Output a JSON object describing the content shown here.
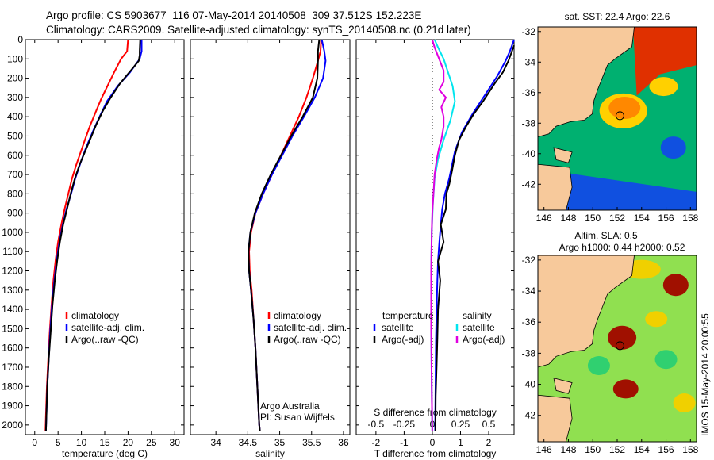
{
  "header": {
    "line1": "Argo profile: CS 5903677_116 07-May-2014 20140508_309 37.512S 152.223E",
    "line2": "Climatology: CARS2009. Satellite-adjusted climatology: synTS_20140508.nc (0.21d later)"
  },
  "chart_data": [
    {
      "type": "line",
      "id": "temperature",
      "xlabel": "temperature (deg C)",
      "xlim": [
        -2,
        32
      ],
      "ylim": [
        2050,
        0
      ],
      "y_reversed": true,
      "xticks": [
        0,
        5,
        10,
        15,
        20,
        25,
        30
      ],
      "yticks": [
        0,
        100,
        200,
        300,
        400,
        500,
        600,
        700,
        800,
        900,
        1000,
        1100,
        1200,
        1300,
        1400,
        1500,
        1600,
        1700,
        1800,
        1900,
        2000
      ],
      "legend": [
        "climatology",
        "satellite-adj. clim.",
        "Argo(..raw -QC)"
      ],
      "series": [
        {
          "name": "climatology",
          "color": "#ff0000",
          "points": [
            [
              20.0,
              0
            ],
            [
              19.8,
              60
            ],
            [
              18.5,
              100
            ],
            [
              17.0,
              170
            ],
            [
              15.6,
              240
            ],
            [
              14.2,
              310
            ],
            [
              13.0,
              380
            ],
            [
              11.8,
              450
            ],
            [
              10.9,
              510
            ],
            [
              9.9,
              580
            ],
            [
              8.9,
              650
            ],
            [
              8.0,
              720
            ],
            [
              7.2,
              800
            ],
            [
              6.4,
              880
            ],
            [
              5.7,
              960
            ],
            [
              5.0,
              1050
            ],
            [
              4.5,
              1140
            ],
            [
              4.0,
              1250
            ],
            [
              3.6,
              1380
            ],
            [
              3.2,
              1520
            ],
            [
              2.9,
              1660
            ],
            [
              2.6,
              1800
            ],
            [
              2.4,
              1950
            ],
            [
              2.3,
              2030
            ]
          ]
        },
        {
          "name": "satellite-adj. clim.",
          "color": "#0000ff",
          "points": [
            [
              22.9,
              0
            ],
            [
              22.9,
              60
            ],
            [
              22.5,
              100
            ],
            [
              20.4,
              170
            ],
            [
              17.8,
              240
            ],
            [
              15.5,
              320
            ],
            [
              13.9,
              400
            ],
            [
              12.4,
              480
            ],
            [
              11.0,
              560
            ],
            [
              9.8,
              640
            ],
            [
              8.7,
              720
            ],
            [
              7.8,
              800
            ],
            [
              6.8,
              880
            ],
            [
              6.0,
              960
            ],
            [
              5.3,
              1050
            ],
            [
              4.7,
              1150
            ],
            [
              4.2,
              1250
            ],
            [
              3.7,
              1380
            ],
            [
              3.3,
              1520
            ],
            [
              3.0,
              1660
            ],
            [
              2.7,
              1800
            ],
            [
              2.5,
              1950
            ],
            [
              2.4,
              2030
            ]
          ]
        },
        {
          "name": "Argo(..raw -QC)",
          "color": "#000000",
          "points": [
            [
              22.6,
              0
            ],
            [
              22.5,
              60
            ],
            [
              22.5,
              80
            ],
            [
              22.3,
              110
            ],
            [
              20.6,
              160
            ],
            [
              18.2,
              230
            ],
            [
              16.3,
              300
            ],
            [
              14.6,
              370
            ],
            [
              13.2,
              440
            ],
            [
              12.0,
              510
            ],
            [
              10.8,
              580
            ],
            [
              9.6,
              650
            ],
            [
              8.6,
              720
            ],
            [
              7.7,
              800
            ],
            [
              6.9,
              880
            ],
            [
              6.1,
              960
            ],
            [
              5.4,
              1050
            ],
            [
              4.8,
              1150
            ],
            [
              4.3,
              1250
            ],
            [
              3.8,
              1380
            ],
            [
              3.4,
              1520
            ],
            [
              3.0,
              1660
            ],
            [
              2.7,
              1800
            ],
            [
              2.5,
              1950
            ],
            [
              2.4,
              2030
            ]
          ]
        }
      ]
    },
    {
      "type": "line",
      "id": "salinity",
      "xlabel": "salinity",
      "xlim": [
        33.6,
        36.1
      ],
      "ylim": [
        2050,
        0
      ],
      "y_reversed": true,
      "xticks": [
        34,
        34.5,
        35,
        35.5,
        36
      ],
      "legend": [
        "climatology",
        "satellite-adj. clim.",
        "Argo(..raw -QC)"
      ],
      "annotation_lines": [
        "Argo Australia",
        "PI: Susan Wijffels"
      ],
      "series": [
        {
          "name": "climatology",
          "color": "#ff0000",
          "points": [
            [
              35.65,
              0
            ],
            [
              35.64,
              60
            ],
            [
              35.6,
              110
            ],
            [
              35.52,
              200
            ],
            [
              35.42,
              300
            ],
            [
              35.3,
              400
            ],
            [
              35.16,
              500
            ],
            [
              35.02,
              600
            ],
            [
              34.88,
              700
            ],
            [
              34.74,
              800
            ],
            [
              34.62,
              900
            ],
            [
              34.55,
              1000
            ],
            [
              34.52,
              1100
            ],
            [
              34.53,
              1200
            ],
            [
              34.56,
              1300
            ],
            [
              34.59,
              1450
            ],
            [
              34.62,
              1600
            ],
            [
              34.65,
              1800
            ],
            [
              34.68,
              2000
            ],
            [
              34.69,
              2030
            ]
          ]
        },
        {
          "name": "satellite-adj. clim.",
          "color": "#0000ff",
          "points": [
            [
              35.66,
              0
            ],
            [
              35.7,
              60
            ],
            [
              35.72,
              110
            ],
            [
              35.68,
              200
            ],
            [
              35.55,
              300
            ],
            [
              35.38,
              400
            ],
            [
              35.2,
              500
            ],
            [
              35.04,
              600
            ],
            [
              34.88,
              700
            ],
            [
              34.74,
              800
            ],
            [
              34.62,
              900
            ],
            [
              34.54,
              1000
            ],
            [
              34.51,
              1100
            ],
            [
              34.52,
              1200
            ],
            [
              34.55,
              1300
            ],
            [
              34.59,
              1450
            ],
            [
              34.62,
              1600
            ],
            [
              34.65,
              1800
            ],
            [
              34.68,
              2000
            ],
            [
              34.69,
              2030
            ]
          ]
        },
        {
          "name": "Argo(..raw -QC)",
          "color": "#000000",
          "points": [
            [
              35.62,
              0
            ],
            [
              35.6,
              60
            ],
            [
              35.6,
              110
            ],
            [
              35.59,
              200
            ],
            [
              35.52,
              300
            ],
            [
              35.36,
              400
            ],
            [
              35.18,
              500
            ],
            [
              35.02,
              600
            ],
            [
              34.86,
              700
            ],
            [
              34.72,
              800
            ],
            [
              34.61,
              900
            ],
            [
              34.54,
              1000
            ],
            [
              34.51,
              1100
            ],
            [
              34.52,
              1200
            ],
            [
              34.55,
              1300
            ],
            [
              34.59,
              1450
            ],
            [
              34.62,
              1600
            ],
            [
              34.65,
              1800
            ],
            [
              34.68,
              2000
            ],
            [
              34.69,
              2030
            ]
          ]
        }
      ]
    },
    {
      "type": "line",
      "id": "difference",
      "xlabel": "T difference from climatology",
      "xlabel_top": "S difference from climatology",
      "xlim": [
        -2.7,
        2.9
      ],
      "xticks": [
        -2,
        -1,
        0,
        1,
        2
      ],
      "s_xticks": [
        -0.5,
        -0.25,
        0,
        0.25,
        0.5
      ],
      "s_scale": 4,
      "ylim": [
        2050,
        0
      ],
      "y_reversed": true,
      "legend_headers": [
        "temperature",
        "salinity"
      ],
      "legend_temperature": [
        "satellite",
        "Argo(-adj)"
      ],
      "legend_salinity": [
        "satellite",
        "Argo(-adj)"
      ],
      "series": [
        {
          "name": "satellite",
          "group": "temperature",
          "color": "#0000ff",
          "points": [
            [
              2.9,
              0
            ],
            [
              2.75,
              60
            ],
            [
              2.6,
              110
            ],
            [
              2.3,
              190
            ],
            [
              1.9,
              280
            ],
            [
              1.45,
              380
            ],
            [
              1.05,
              480
            ],
            [
              0.8,
              580
            ],
            [
              0.7,
              650
            ],
            [
              0.6,
              720
            ],
            [
              0.45,
              800
            ],
            [
              0.35,
              880
            ],
            [
              0.3,
              960
            ],
            [
              0.25,
              1050
            ],
            [
              0.2,
              1150
            ],
            [
              0.18,
              1250
            ],
            [
              0.15,
              1400
            ],
            [
              0.13,
              1550
            ],
            [
              0.12,
              1700
            ],
            [
              0.11,
              1850
            ],
            [
              0.1,
              2030
            ]
          ]
        },
        {
          "name": "Argo(-adj)",
          "group": "temperature",
          "color": "#000000",
          "points": [
            [
              2.9,
              30
            ],
            [
              2.7,
              110
            ],
            [
              2.5,
              170
            ],
            [
              2.2,
              230
            ],
            [
              1.8,
              320
            ],
            [
              1.45,
              390
            ],
            [
              1.2,
              450
            ],
            [
              0.95,
              520
            ],
            [
              0.8,
              600
            ],
            [
              0.7,
              680
            ],
            [
              0.6,
              750
            ],
            [
              0.5,
              800
            ],
            [
              0.48,
              880
            ],
            [
              0.3,
              960
            ],
            [
              0.4,
              1050
            ],
            [
              0.2,
              1150
            ],
            [
              0.28,
              1250
            ],
            [
              0.2,
              1400
            ],
            [
              0.18,
              1550
            ],
            [
              0.15,
              1700
            ],
            [
              0.12,
              1850
            ],
            [
              0.11,
              2030
            ]
          ]
        },
        {
          "name": "satellite",
          "group": "salinity",
          "color": "#00e5ee",
          "points": [
            [
              0.02,
              0
            ],
            [
              0.05,
              40
            ],
            [
              0.1,
              100
            ],
            [
              0.14,
              170
            ],
            [
              0.18,
              240
            ],
            [
              0.2,
              320
            ],
            [
              0.16,
              420
            ],
            [
              0.1,
              520
            ],
            [
              0.05,
              620
            ],
            [
              0.02,
              720
            ],
            [
              0.005,
              850
            ],
            [
              -0.005,
              1000
            ],
            [
              -0.01,
              1200
            ],
            [
              -0.01,
              1500
            ],
            [
              -0.005,
              1800
            ],
            [
              0.0,
              2030
            ]
          ]
        },
        {
          "name": "Argo(-adj)",
          "group": "salinity",
          "color": "#e000e0",
          "points": [
            [
              0.0,
              0
            ],
            [
              0.02,
              40
            ],
            [
              0.06,
              100
            ],
            [
              0.1,
              160
            ],
            [
              0.1,
              220
            ],
            [
              0.06,
              260
            ],
            [
              0.12,
              300
            ],
            [
              0.08,
              350
            ],
            [
              0.1,
              400
            ],
            [
              0.1,
              450
            ],
            [
              0.08,
              520
            ],
            [
              0.06,
              560
            ],
            [
              0.04,
              620
            ],
            [
              0.02,
              700
            ],
            [
              0.01,
              800
            ],
            [
              0.0,
              900
            ],
            [
              -0.005,
              1000
            ],
            [
              -0.01,
              1200
            ],
            [
              -0.01,
              1500
            ],
            [
              -0.005,
              1800
            ],
            [
              0.0,
              2030
            ]
          ]
        }
      ]
    },
    {
      "type": "heatmap",
      "id": "sst-map",
      "title": "sat. SST: 22.4  Argo: 22.6",
      "xlim": [
        145.5,
        158.5
      ],
      "ylim": [
        -43.7,
        -31.7
      ],
      "xticks": [
        146,
        148,
        150,
        152,
        154,
        156,
        158
      ],
      "yticks": [
        -32,
        -34,
        -36,
        -38,
        -40,
        -42
      ],
      "marker": {
        "lon": 152.223,
        "lat": -37.512
      },
      "colors": {
        "land": "#f7c99b",
        "warm": "#e03000",
        "mid": "#ffd000",
        "cool": "#00b070",
        "cold": "#1050e0"
      }
    },
    {
      "type": "heatmap",
      "id": "sla-map",
      "title": "Altim. SLA: 0.5",
      "subtitle": "Argo h1000: 0.44  h2000: 0.52",
      "xlim": [
        145.5,
        158.5
      ],
      "ylim": [
        -43.7,
        -31.7
      ],
      "xticks": [
        146,
        148,
        150,
        152,
        154,
        156,
        158
      ],
      "yticks": [
        -32,
        -34,
        -36,
        -38,
        -40,
        -42
      ],
      "marker": {
        "lon": 152.223,
        "lat": -37.512
      },
      "side_label": "IMOS 15-May-2014 20:00:55",
      "colors": {
        "land": "#f7c99b",
        "high": "#a01000",
        "mid": "#f0d000",
        "low": "#30d070",
        "base": "#90e050"
      }
    }
  ]
}
